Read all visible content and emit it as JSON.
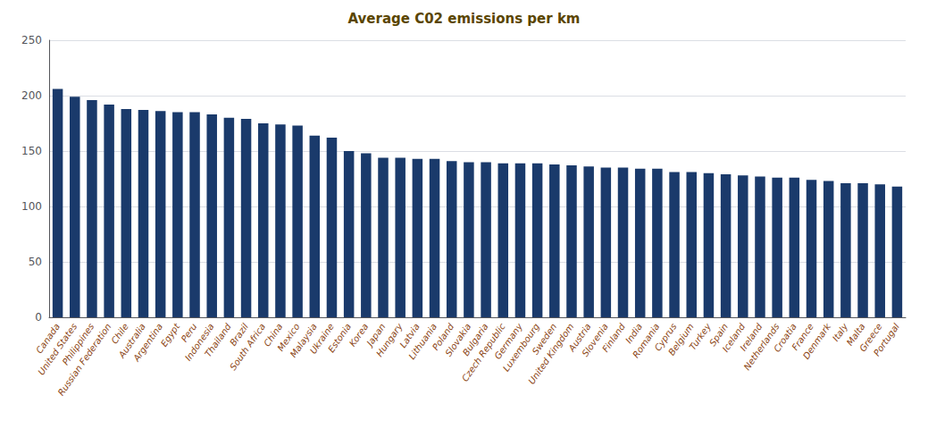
{
  "chart_data": {
    "type": "bar",
    "title": "Average C02 emissions per km",
    "categories": [
      "Canada",
      "United States",
      "Philippines",
      "Russian Federation",
      "Chile",
      "Australia",
      "Argentina",
      "Egypt",
      "Peru",
      "Indonesia",
      "Thailand",
      "Brazil",
      "South Africa",
      "China",
      "Mexico",
      "Malaysia",
      "Ukraine",
      "Estonia",
      "Korea",
      "Japan",
      "Hungary",
      "Latvia",
      "Lithuania",
      "Poland",
      "Slovakia",
      "Bulgaria",
      "Czech Republic",
      "Germany",
      "Luxembourg",
      "Sweden",
      "United Kingdom",
      "Austria",
      "Slovenia",
      "Finland",
      "India",
      "Romania",
      "Cyprus",
      "Belgium",
      "Turkey",
      "Spain",
      "Iceland",
      "Ireland",
      "Netherlands",
      "Croatia",
      "France",
      "Denmark",
      "Italy",
      "Malta",
      "Greece",
      "Portugal"
    ],
    "values": [
      206,
      199,
      196,
      192,
      188,
      187,
      186,
      185,
      185,
      183,
      180,
      179,
      175,
      174,
      173,
      164,
      162,
      150,
      148,
      144,
      144,
      143,
      143,
      141,
      140,
      140,
      139,
      139,
      139,
      138,
      137,
      136,
      135,
      135,
      134,
      134,
      131,
      131,
      130,
      129,
      128,
      127,
      126,
      126,
      124,
      123,
      121,
      121,
      120,
      118
    ],
    "color": "#1a3a6b",
    "ylim": [
      0,
      250
    ],
    "yticks": [
      0,
      50,
      100,
      150,
      200,
      250
    ],
    "grid": true
  }
}
